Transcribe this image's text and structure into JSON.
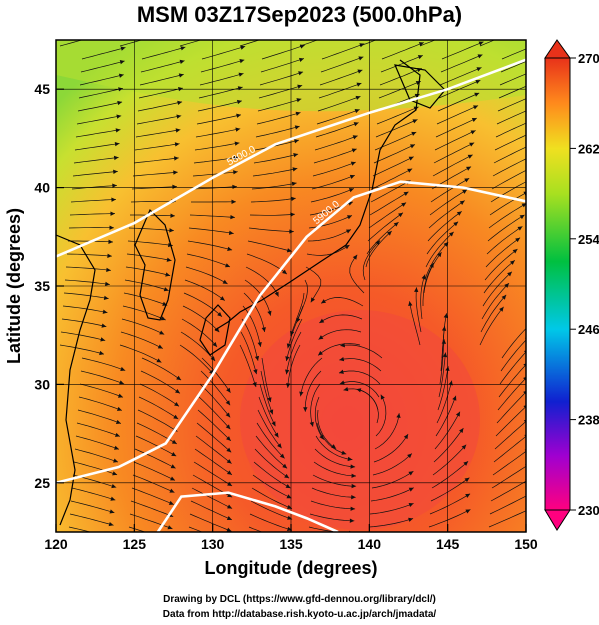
{
  "title": "MSM 03Z17Sep2023 (500.0hPa)",
  "map": {
    "x_axis": {
      "label": "Longitude (degrees)",
      "range": [
        120,
        150
      ],
      "ticks": [
        "120",
        "125",
        "130",
        "135",
        "140",
        "145",
        "150"
      ],
      "tick_values": [
        120,
        125,
        130,
        135,
        140,
        145,
        150
      ]
    },
    "y_axis": {
      "label": "Latitude  (degrees)",
      "range": [
        22.5,
        47.5
      ],
      "ticks": [
        "25",
        "30",
        "35",
        "40",
        "45"
      ],
      "tick_values": [
        25,
        30,
        35,
        40,
        45
      ]
    },
    "grid": true,
    "contours": [
      {
        "label": "5800.0",
        "points": [
          [
            120,
            36.5
          ],
          [
            125,
            38.2
          ],
          [
            130,
            40.5
          ],
          [
            134,
            42.2
          ],
          [
            140,
            43.8
          ],
          [
            145,
            45.0
          ],
          [
            150,
            46.5
          ]
        ]
      },
      {
        "label": "5900.0",
        "points": [
          [
            120,
            25.0
          ],
          [
            124,
            25.8
          ],
          [
            127,
            27.0
          ],
          [
            130,
            30.5
          ],
          [
            133,
            34.5
          ],
          [
            136,
            37.5
          ],
          [
            139,
            39.5
          ],
          [
            142,
            40.3
          ],
          [
            146,
            40.0
          ],
          [
            150,
            39.3
          ]
        ]
      },
      {
        "label": "",
        "points": [
          [
            126.5,
            22.5
          ],
          [
            128,
            24.3
          ],
          [
            131,
            24.5
          ],
          [
            134,
            23.8
          ],
          [
            136,
            23.2
          ],
          [
            138,
            22.5
          ]
        ]
      }
    ],
    "colorbar": {
      "ticks": [
        "270",
        "262",
        "254",
        "246",
        "238",
        "230"
      ],
      "tick_values": [
        270,
        262,
        254,
        246,
        238,
        230
      ],
      "range": [
        230,
        270
      ],
      "colors": [
        "#ff007f",
        "#7000c0",
        "#0020d0",
        "#00b8e0",
        "#00c060",
        "#60d020",
        "#d0e030",
        "#ffd020",
        "#ff8020",
        "#e03020"
      ]
    }
  },
  "credits": {
    "line1": "Drawing by DCL (https://www.gfd-dennou.org/library/dcl/)",
    "line2": "Data from http://database.rish.kyoto-u.ac.jp/arch/jmadata/"
  }
}
